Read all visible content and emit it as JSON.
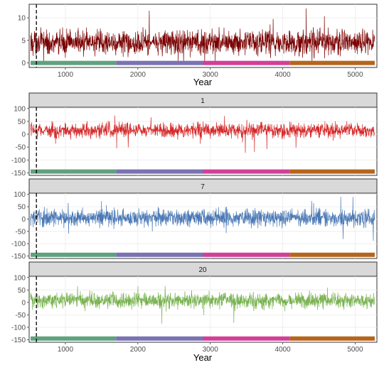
{
  "chart_data": [
    {
      "type": "line",
      "panel": "top",
      "strip": "",
      "xlabel": "Year",
      "ylabel": "",
      "xlim": [
        500,
        5300
      ],
      "ylim": [
        -1,
        13
      ],
      "yticks": [
        0,
        5,
        10
      ],
      "xticks": [
        1000,
        2000,
        3000,
        4000,
        5000
      ],
      "vline_x": 600,
      "series": [
        {
          "color": "#7a0000",
          "baseline": 4.5,
          "spread": 2.6,
          "min": 0.3,
          "max": 12.5
        }
      ],
      "period_bar": {
        "y": 0,
        "segments": [
          {
            "from": 520,
            "to": 1700,
            "color": "#5fa27e"
          },
          {
            "from": 1700,
            "to": 2900,
            "color": "#7a72b3"
          },
          {
            "from": 2900,
            "to": 4100,
            "color": "#d23f98"
          },
          {
            "from": 4100,
            "to": 5270,
            "color": "#b6651c"
          }
        ]
      }
    },
    {
      "type": "line",
      "panel": "1",
      "strip": "1",
      "xlabel": "",
      "ylabel": "",
      "xlim": [
        500,
        5300
      ],
      "ylim": [
        -160,
        105
      ],
      "yticks": [
        -150,
        -100,
        -50,
        0,
        50,
        100
      ],
      "xticks": [
        1000,
        2000,
        3000,
        4000,
        5000
      ],
      "vline_x": 600,
      "series": [
        {
          "color": "#d62728",
          "baseline": 15,
          "spread": 28,
          "min": -110,
          "max": 75
        }
      ],
      "period_bar": {
        "y": -145,
        "segments": [
          {
            "from": 520,
            "to": 1700,
            "color": "#5fa27e"
          },
          {
            "from": 1700,
            "to": 2900,
            "color": "#7a72b3"
          },
          {
            "from": 2900,
            "to": 4100,
            "color": "#d23f98"
          },
          {
            "from": 4100,
            "to": 5270,
            "color": "#b6651c"
          }
        ]
      }
    },
    {
      "type": "line",
      "panel": "7",
      "strip": "7",
      "xlabel": "",
      "ylabel": "",
      "xlim": [
        500,
        5300
      ],
      "ylim": [
        -160,
        105
      ],
      "yticks": [
        -150,
        -100,
        -50,
        0,
        50,
        100
      ],
      "xticks": [
        1000,
        2000,
        3000,
        4000,
        5000
      ],
      "vline_x": 600,
      "series": [
        {
          "color": "#4a78b5",
          "baseline": 5,
          "spread": 34,
          "min": -145,
          "max": 90
        }
      ],
      "period_bar": {
        "y": -145,
        "segments": [
          {
            "from": 520,
            "to": 1700,
            "color": "#5fa27e"
          },
          {
            "from": 1700,
            "to": 2900,
            "color": "#7a72b3"
          },
          {
            "from": 2900,
            "to": 4100,
            "color": "#d23f98"
          },
          {
            "from": 4100,
            "to": 5270,
            "color": "#b6651c"
          }
        ]
      }
    },
    {
      "type": "line",
      "panel": "20",
      "strip": "20",
      "xlabel": "Year",
      "ylabel": "",
      "xlim": [
        500,
        5300
      ],
      "ylim": [
        -160,
        105
      ],
      "yticks": [
        -150,
        -100,
        -50,
        0,
        50,
        100
      ],
      "xticks": [
        1000,
        2000,
        3000,
        4000,
        5000
      ],
      "vline_x": 600,
      "series": [
        {
          "color": "#78b24f",
          "baseline": 8,
          "spread": 30,
          "min": -130,
          "max": 65
        }
      ],
      "period_bar": {
        "y": -145,
        "segments": [
          {
            "from": 520,
            "to": 1700,
            "color": "#5fa27e"
          },
          {
            "from": 1700,
            "to": 2900,
            "color": "#7a72b3"
          },
          {
            "from": 2900,
            "to": 4100,
            "color": "#d23f98"
          },
          {
            "from": 4100,
            "to": 5270,
            "color": "#b6651c"
          }
        ]
      }
    }
  ]
}
